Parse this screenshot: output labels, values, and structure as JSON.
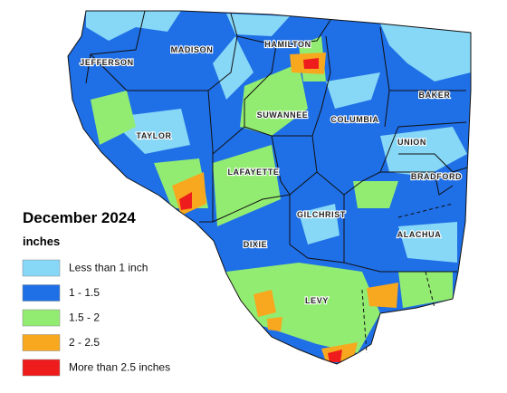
{
  "map": {
    "title": "December 2024",
    "unit": "inches",
    "legend": [
      {
        "label": "Less than 1 inch",
        "color": "#87d7f7"
      },
      {
        "label": "1 - 1.5",
        "color": "#1f6fe6"
      },
      {
        "label": "1.5 - 2",
        "color": "#93ec72"
      },
      {
        "label": "2 - 2.5",
        "color": "#f7a81e"
      },
      {
        "label": "More than 2.5 inches",
        "color": "#ee1c1c"
      }
    ],
    "counties": [
      {
        "name": "JEFFERSON"
      },
      {
        "name": "MADISON"
      },
      {
        "name": "HAMILTON"
      },
      {
        "name": "BAKER"
      },
      {
        "name": "SUWANNEE"
      },
      {
        "name": "COLUMBIA"
      },
      {
        "name": "TAYLOR"
      },
      {
        "name": "UNION"
      },
      {
        "name": "LAFAYETTE"
      },
      {
        "name": "BRADFORD"
      },
      {
        "name": "GILCHRIST"
      },
      {
        "name": "DIXIE"
      },
      {
        "name": "ALACHUA"
      },
      {
        "name": "LEVY"
      }
    ]
  }
}
